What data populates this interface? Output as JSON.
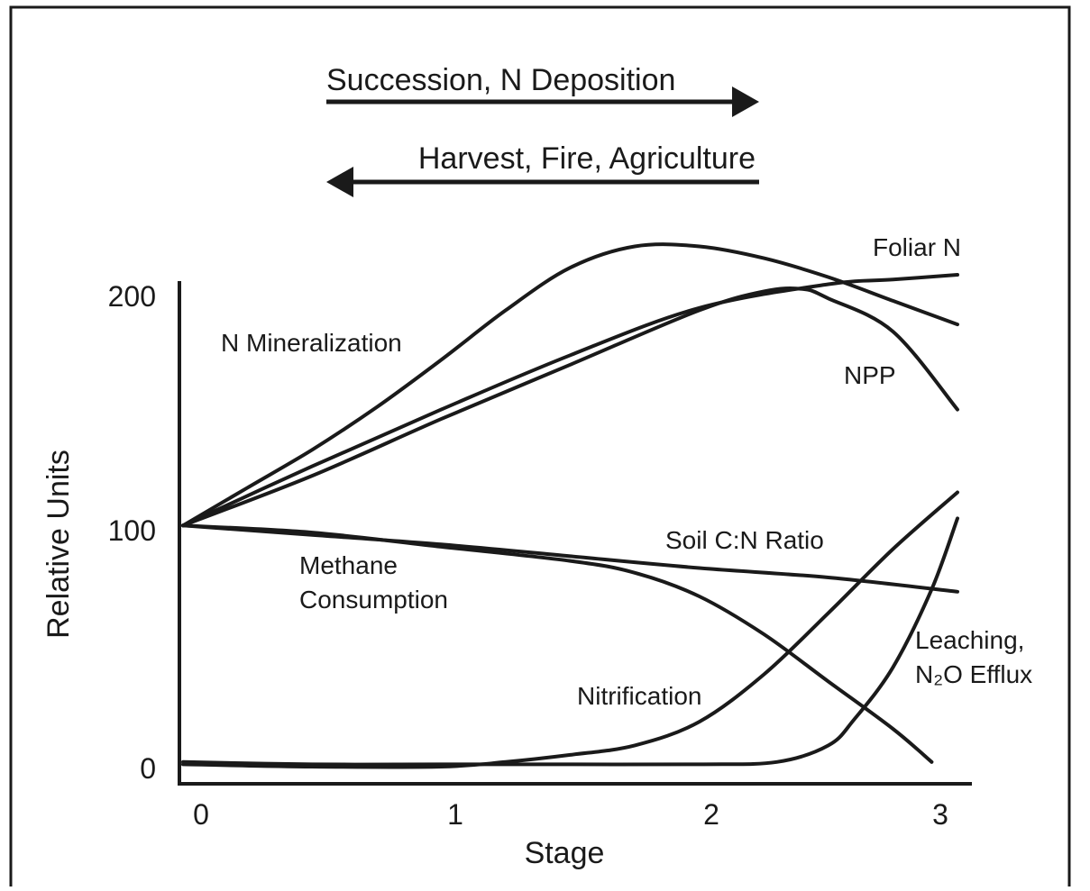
{
  "chart_data": {
    "type": "line",
    "xlabel": "Stage",
    "ylabel": "Relative Units",
    "xlim": [
      0,
      3
    ],
    "ylim": [
      0,
      200
    ],
    "x_ticks": [
      "0",
      "1",
      "2",
      "3"
    ],
    "y_ticks": [
      "0",
      "100",
      "200"
    ],
    "grid": false,
    "annotations": {
      "arrow_right": "Succession, N Deposition",
      "arrow_left": "Harvest, Fire, Agriculture"
    },
    "series": [
      {
        "name": "N Mineralization",
        "x": [
          0,
          0.25,
          0.5,
          0.75,
          1.0,
          1.25,
          1.5,
          1.75,
          2.0,
          2.25,
          2.5,
          2.75,
          3.0
        ],
        "values": [
          102,
          118,
          134,
          152,
          172,
          193,
          211,
          220,
          220,
          215,
          207,
          197,
          187
        ]
      },
      {
        "name": "Foliar N",
        "x": [
          0,
          0.5,
          1.0,
          1.5,
          2.0,
          2.5,
          2.75,
          3.0
        ],
        "values": [
          102,
          127,
          151,
          174,
          194,
          204,
          206,
          208
        ]
      },
      {
        "name": "NPP",
        "x": [
          0,
          0.5,
          1.0,
          1.5,
          2.0,
          2.25,
          2.4,
          2.5,
          2.75,
          3.0
        ],
        "values": [
          102,
          123,
          147,
          170,
          193,
          201,
          202,
          198,
          184,
          151
        ]
      },
      {
        "name": "Soil C:N Ratio",
        "x": [
          0,
          0.5,
          1.0,
          1.5,
          2.0,
          2.5,
          3.0
        ],
        "values": [
          102,
          98,
          94,
          89,
          84,
          80,
          74
        ]
      },
      {
        "name": "Methane Consumption",
        "x": [
          0,
          0.5,
          1.0,
          1.5,
          1.75,
          2.0,
          2.25,
          2.5,
          2.75,
          2.9
        ],
        "values": [
          102,
          99,
          93,
          87,
          82,
          72,
          56,
          36,
          16,
          2
        ]
      },
      {
        "name": "Nitrification",
        "x": [
          0,
          0.5,
          1.0,
          1.25,
          1.5,
          1.75,
          2.0,
          2.25,
          2.5,
          2.75,
          3.0
        ],
        "values": [
          1,
          0,
          0,
          2,
          5,
          9,
          19,
          39,
          65,
          92,
          116
        ]
      },
      {
        "name": "Leaching, N₂O Efflux",
        "x": [
          0,
          0.5,
          1.0,
          1.5,
          2.0,
          2.3,
          2.5,
          2.6,
          2.75,
          2.9,
          3.0
        ],
        "values": [
          2,
          1,
          1,
          1,
          1,
          2,
          9,
          20,
          42,
          75,
          105
        ]
      }
    ]
  }
}
